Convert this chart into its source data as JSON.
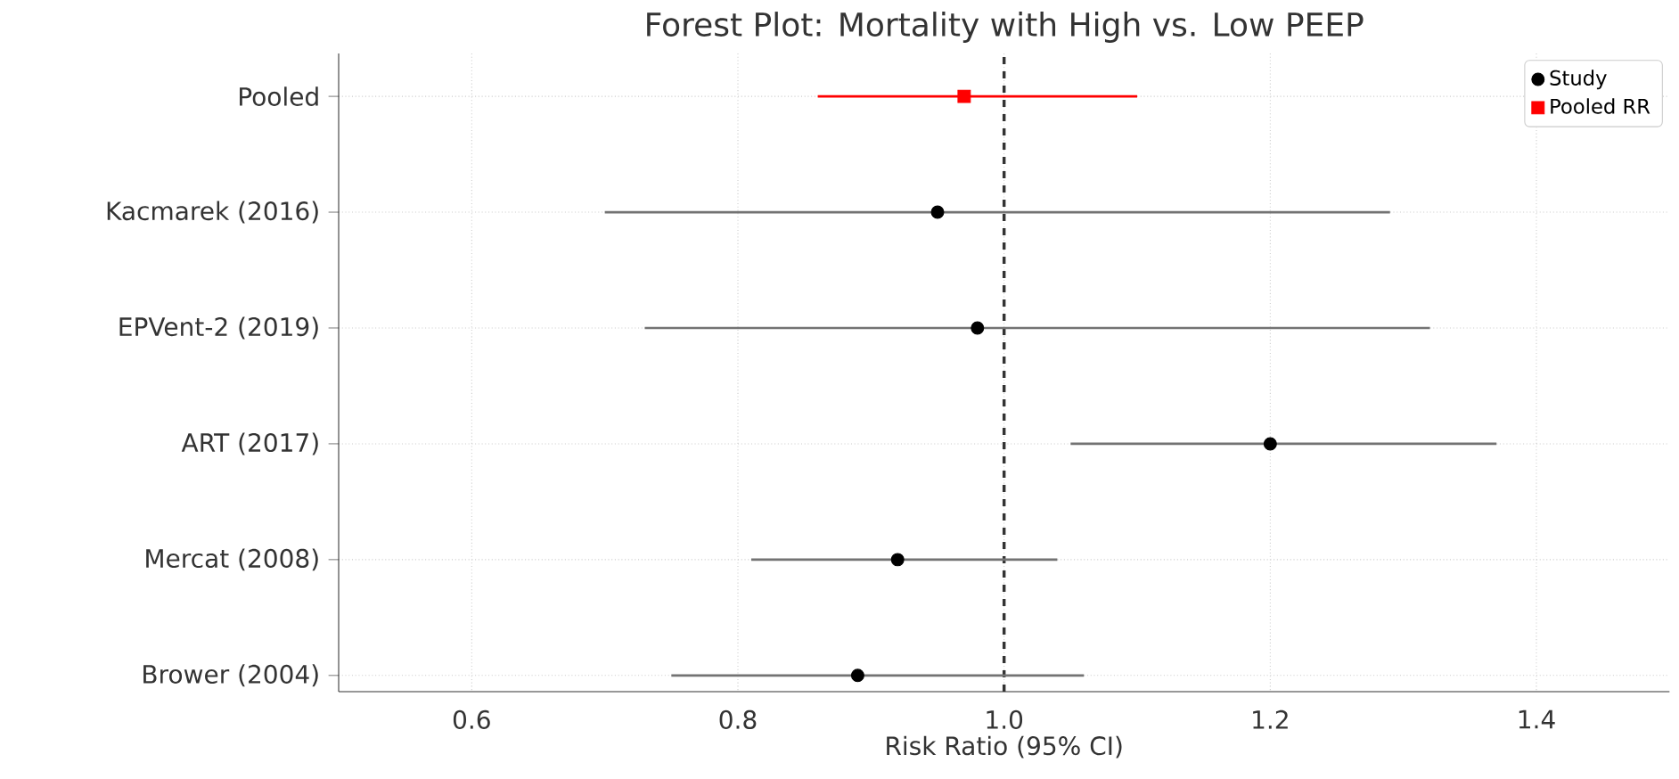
{
  "chart_data": {
    "type": "scatter",
    "orientation": "horizontal",
    "title": "Forest Plot: Mortality with High vs. Low PEEP",
    "xlabel": "Risk Ratio (95% CI)",
    "categories": [
      "Pooled",
      "Kacmarek (2016)",
      "EPVent-2 (2019)",
      "ART (2017)",
      "Mercat (2008)",
      "Brower (2004)"
    ],
    "series": [
      {
        "name": "Study",
        "color": "#000000",
        "marker": "circle",
        "values": [
          null,
          0.95,
          0.98,
          1.2,
          0.92,
          0.89
        ],
        "errors": [
          null,
          [
            0.7,
            1.29
          ],
          [
            0.73,
            1.32
          ],
          [
            1.05,
            1.37
          ],
          [
            0.81,
            1.04
          ],
          [
            0.75,
            1.06
          ]
        ]
      },
      {
        "name": "Pooled RR",
        "color": "#ff0000",
        "marker": "square",
        "values": [
          0.97,
          null,
          null,
          null,
          null,
          null
        ],
        "errors": [
          [
            0.86,
            1.1
          ],
          null,
          null,
          null,
          null,
          null
        ]
      }
    ],
    "xlim": [
      0.5,
      1.5
    ],
    "xticks": [
      0.6,
      0.8,
      {
        "value": 1,
        "label": "1.0"
      },
      1.2,
      1.4
    ],
    "ref_lines": [
      {
        "axis": "x",
        "value": 1,
        "color": "#333333",
        "line_style": "dashed"
      }
    ],
    "grid": true,
    "legend": "top right"
  }
}
